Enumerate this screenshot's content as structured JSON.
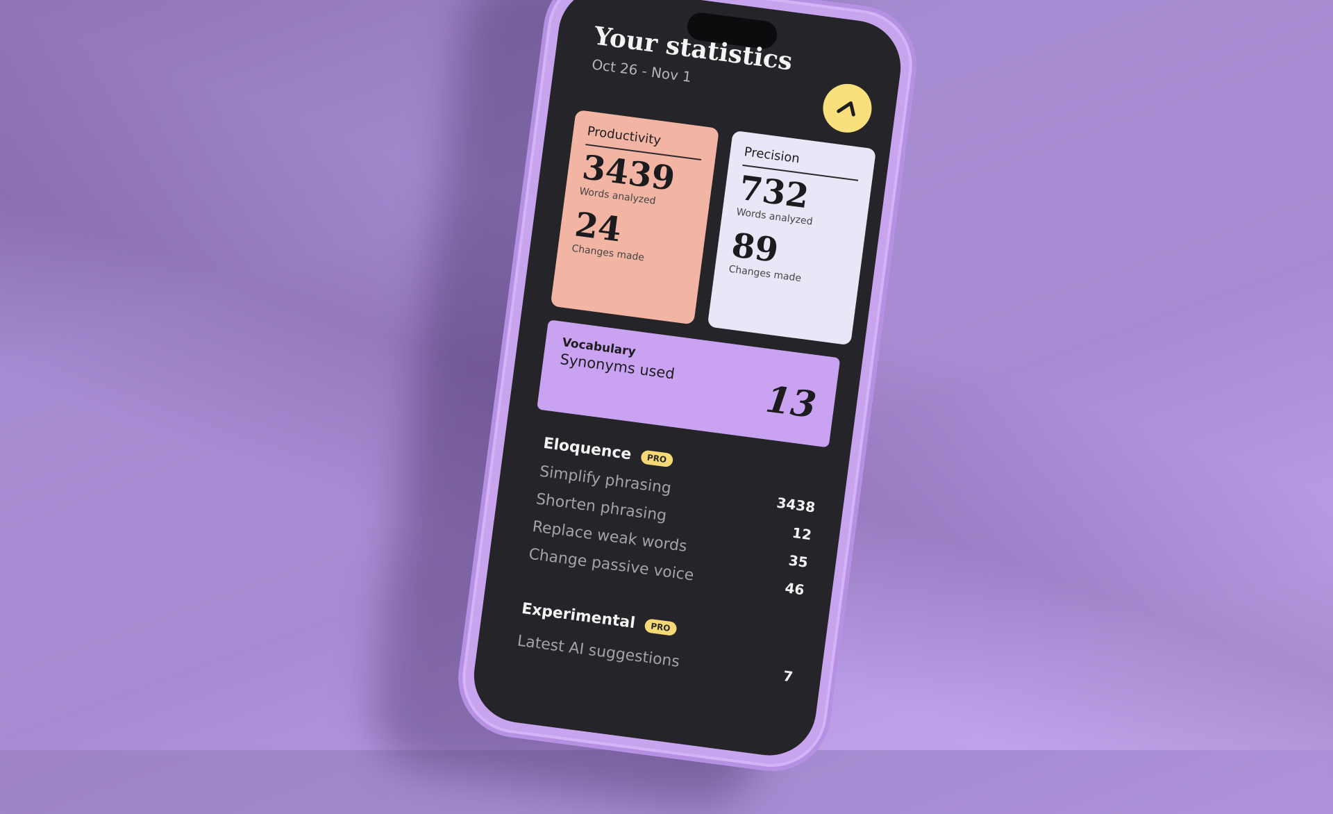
{
  "header": {
    "title": "Your statistics",
    "date_range": "Oct 26 - Nov 1",
    "action_icon": "arrow-up-icon"
  },
  "cards": [
    {
      "label": "Productivity",
      "words": "3439",
      "words_label": "Words analyzed",
      "changes": "24",
      "changes_label": "Changes made",
      "color": "#f2b4a3"
    },
    {
      "label": "Precision",
      "words": "732",
      "words_label": "Words analyzed",
      "changes": "89",
      "changes_label": "Changes made",
      "color": "#e7e7f7"
    }
  ],
  "vocabulary": {
    "label": "Vocabulary",
    "metric": "Synonyms used",
    "value": "13",
    "color": "#c9a3f1"
  },
  "eloquence": {
    "title": "Eloquence",
    "badge": "PRO",
    "items": [
      {
        "label": "Simplify phrasing",
        "value": "3438"
      },
      {
        "label": "Shorten phrasing",
        "value": "12"
      },
      {
        "label": "Replace weak words",
        "value": "35"
      },
      {
        "label": "Change passive voice",
        "value": "46"
      }
    ]
  },
  "experimental": {
    "title": "Experimental",
    "badge": "PRO",
    "items": [
      {
        "label": "Latest AI suggestions",
        "value": "7"
      }
    ]
  },
  "colors": {
    "background": "#a68cd2",
    "phone_frame": "#c8a4ef",
    "screen": "#242429",
    "accent_yellow": "#f9e07c"
  }
}
